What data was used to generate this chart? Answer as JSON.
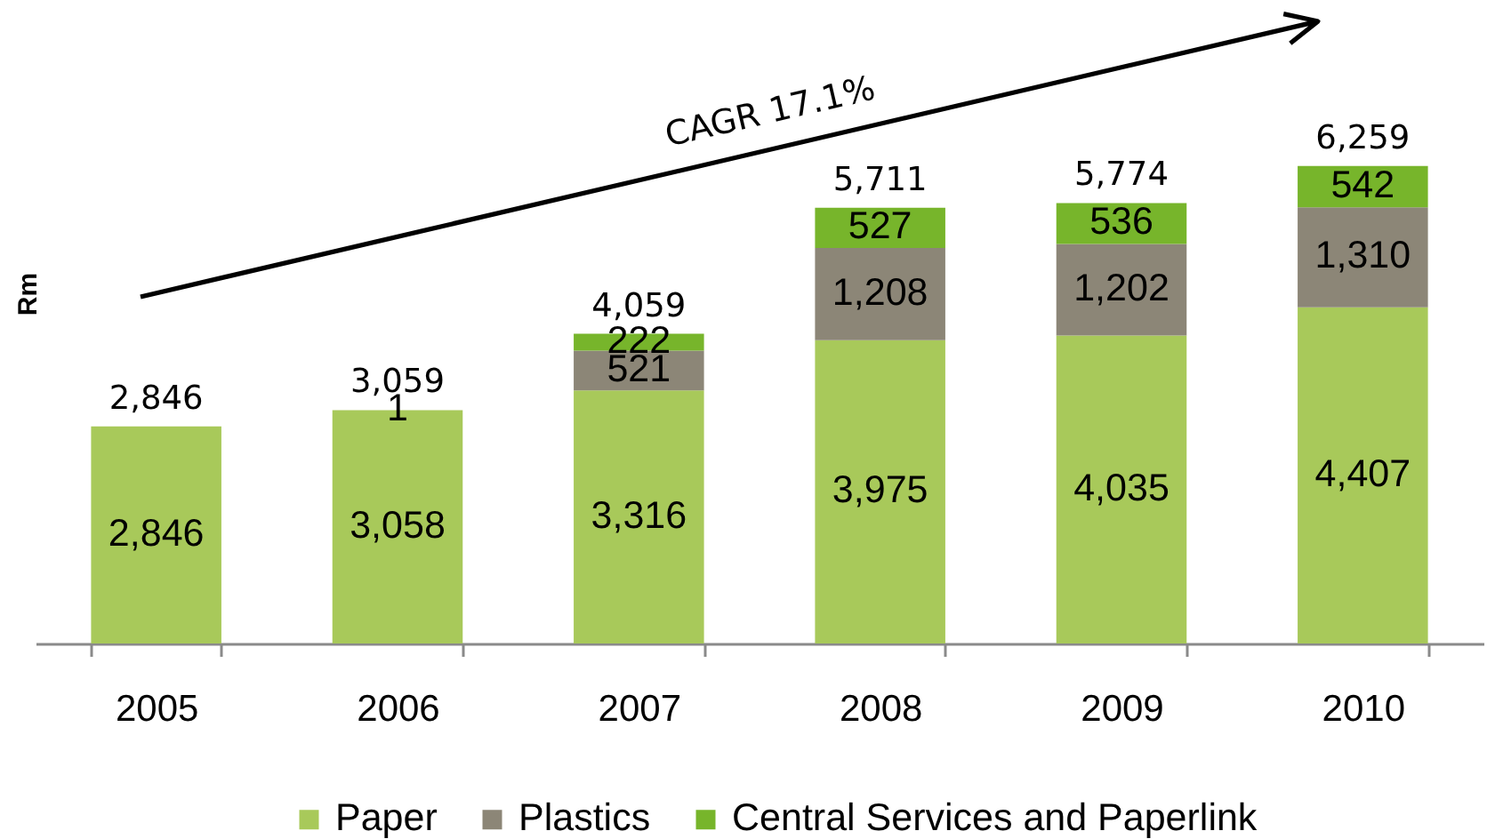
{
  "chart_data": {
    "type": "bar",
    "stacked": true,
    "ylabel": "Rm",
    "categories": [
      "2005",
      "2006",
      "2007",
      "2008",
      "2009",
      "2010"
    ],
    "series": [
      {
        "name": "Paper",
        "color": "#a8c95a",
        "values": [
          2846,
          3058,
          3316,
          3975,
          4035,
          4407
        ],
        "value_labels": [
          "2,846",
          "3,058",
          "3,316",
          "3,975",
          "4,035",
          "4,407"
        ]
      },
      {
        "name": "Plastics",
        "color": "#8c8677",
        "values": [
          null,
          null,
          521,
          1208,
          1202,
          1310
        ],
        "value_labels": [
          null,
          null,
          "521",
          "1,208",
          "1,202",
          "1,310"
        ]
      },
      {
        "name": "Central Services and Paperlink",
        "color": "#77b52b",
        "values": [
          null,
          1,
          222,
          527,
          536,
          542
        ],
        "value_labels": [
          null,
          "1",
          "222",
          "527",
          "536",
          "542"
        ]
      }
    ],
    "totals": [
      "2,846",
      "3,059",
      "4,059",
      "5,711",
      "5,774",
      "6,259"
    ],
    "annotations": [
      "CAGR 17.1%"
    ],
    "legend": "bottom",
    "tick_labels": "x",
    "grid": false
  }
}
